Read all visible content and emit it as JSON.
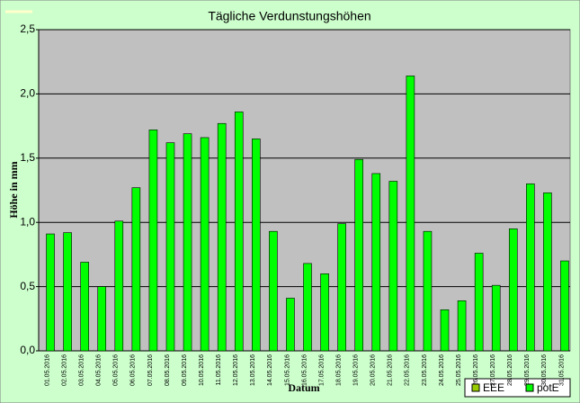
{
  "chart_data": {
    "type": "bar",
    "title": "Tägliche Verdunstungshöhen",
    "y_label": "Höhe in mm",
    "x_label": "Datum",
    "categories": [
      "01.05.2016",
      "02.05.2016",
      "03.05.2016",
      "04.05.2016",
      "05.05.2016",
      "06.05.2016",
      "07.05.2016",
      "08.05.2016",
      "09.05.2016",
      "10.05.2016",
      "11.05.2016",
      "12.05.2016",
      "13.05.2016",
      "14.05.2016",
      "15.05.2016",
      "16.05.2016",
      "17.05.2016",
      "18.05.2016",
      "19.05.2016",
      "20.05.2016",
      "21.05.2016",
      "22.05.2016",
      "23.05.2016",
      "24.05.2016",
      "25.05.2016",
      "26.05.2016",
      "27.05.2016",
      "28.05.2016",
      "29.05.2016",
      "30.05.2016",
      "31.05.2016"
    ],
    "series": [
      {
        "name": "EEE",
        "color": "#99cc00",
        "values": [
          null,
          null,
          null,
          null,
          null,
          null,
          null,
          null,
          null,
          null,
          null,
          null,
          null,
          null,
          null,
          null,
          null,
          null,
          null,
          null,
          null,
          null,
          null,
          null,
          null,
          null,
          null,
          null,
          null,
          null,
          null
        ]
      },
      {
        "name": "potE",
        "color": "#00ff00",
        "values": [
          0.91,
          0.92,
          0.69,
          0.5,
          1.01,
          1.27,
          1.72,
          1.62,
          1.69,
          1.66,
          1.77,
          1.86,
          1.65,
          0.93,
          0.41,
          0.68,
          0.6,
          0.99,
          1.49,
          1.38,
          1.32,
          2.14,
          0.93,
          0.32,
          0.39,
          0.76,
          0.51,
          0.95,
          1.3,
          1.23,
          0.7
        ]
      }
    ],
    "ylim": [
      0,
      2.5
    ],
    "yticks": [
      {
        "value": 0,
        "label": "0,0"
      },
      {
        "value": 0.5,
        "label": "0,5"
      },
      {
        "value": 1,
        "label": "1,0"
      },
      {
        "value": 1.5,
        "label": "1,5"
      },
      {
        "value": 2,
        "label": "2,0"
      },
      {
        "value": 2.5,
        "label": "2,5"
      }
    ],
    "grid": true,
    "legend": "bottom-right"
  }
}
